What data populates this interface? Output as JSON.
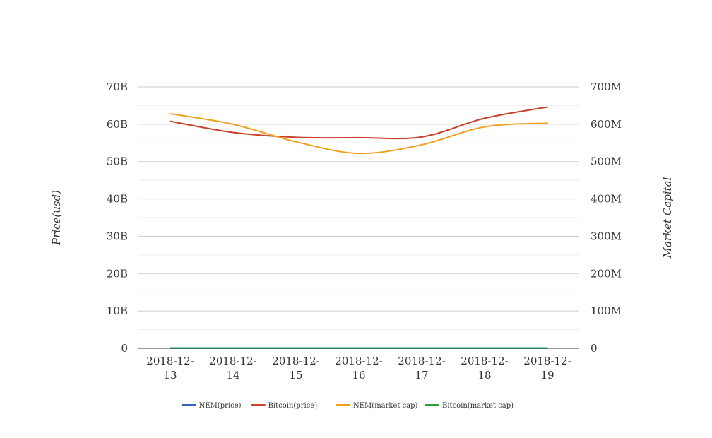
{
  "chart_data": {
    "type": "line",
    "title": "",
    "categories": [
      "2018-12-13",
      "2018-12-14",
      "2018-12-15",
      "2018-12-16",
      "2018-12-17",
      "2018-12-18",
      "2018-12-19"
    ],
    "category_label_lines": [
      [
        "2018-12-",
        "13"
      ],
      [
        "2018-12-",
        "14"
      ],
      [
        "2018-12-",
        "15"
      ],
      [
        "2018-12-",
        "16"
      ],
      [
        "2018-12-",
        "17"
      ],
      [
        "2018-12-",
        "18"
      ],
      [
        "2018-12-",
        "19"
      ]
    ],
    "y_left": {
      "label": "Price(usd)",
      "min": 0,
      "max": 70000000000,
      "ticks": [
        0,
        10000000000,
        20000000000,
        30000000000,
        40000000000,
        50000000000,
        60000000000,
        70000000000
      ],
      "tick_labels": [
        "0",
        "10B",
        "20B",
        "30B",
        "40B",
        "50B",
        "60B",
        "70B"
      ]
    },
    "y_right": {
      "label": "Market Capital",
      "min": 0,
      "max": 700000000,
      "ticks": [
        0,
        100000000,
        200000000,
        300000000,
        400000000,
        500000000,
        600000000,
        700000000
      ],
      "tick_labels": [
        "0",
        "100M",
        "200M",
        "300M",
        "400M",
        "500M",
        "600M",
        "700M"
      ]
    },
    "grid": true,
    "legend_position": "bottom",
    "series": [
      {
        "name": "NEM(price)",
        "axis": "left",
        "color": "#3b5fc0",
        "values": [
          0,
          0,
          0,
          0,
          0,
          0,
          0
        ]
      },
      {
        "name": "Bitcoin(price)",
        "axis": "left",
        "color": "#c9402b",
        "values": [
          60800000000,
          57800000000,
          56500000000,
          56400000000,
          56600000000,
          61600000000,
          64600000000
        ]
      },
      {
        "name": "NEM(market cap)",
        "axis": "right",
        "color": "#f0a020",
        "values": [
          628000000,
          600000000,
          553000000,
          522000000,
          545000000,
          593000000,
          603000000
        ]
      },
      {
        "name": "Bitcoin(market cap)",
        "axis": "right",
        "color": "#2e9a3a",
        "values": [
          1000000,
          1000000,
          1000000,
          1000000,
          1000000,
          1000000,
          1000000
        ]
      }
    ]
  }
}
